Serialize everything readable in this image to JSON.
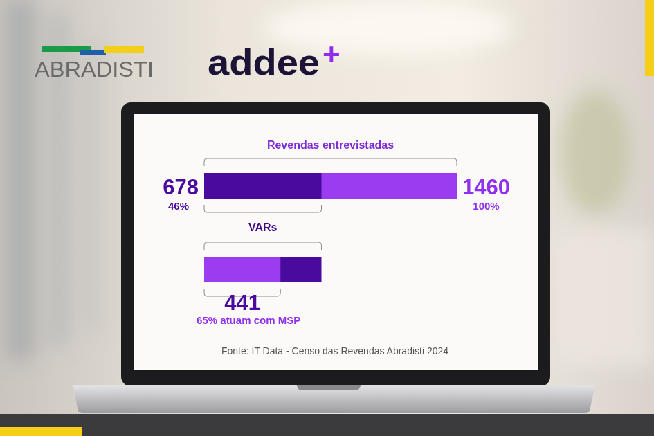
{
  "logos": {
    "left": "ABRADISTI",
    "right": "addee",
    "right_mark": "+"
  },
  "chart_data": {
    "type": "bar",
    "orientation": "horizontal",
    "data_labels": true,
    "tick_labels": false,
    "xlim": [
      0,
      1460
    ],
    "source": "Fonte: IT Data - Censo das Revendas Abradisti 2024",
    "bars": [
      {
        "title": "Revendas entrevistadas",
        "total": 1460,
        "total_label": "100%",
        "part": 678,
        "part_label": "46%",
        "total_color": "#9b3cf0",
        "part_color": "#4b0a9e"
      },
      {
        "title": "VARs",
        "total": 678,
        "part": 441,
        "part_label": "65% atuam com MSP",
        "total_color": "#4b0a9e",
        "part_color": "#9b3cf0"
      }
    ]
  }
}
